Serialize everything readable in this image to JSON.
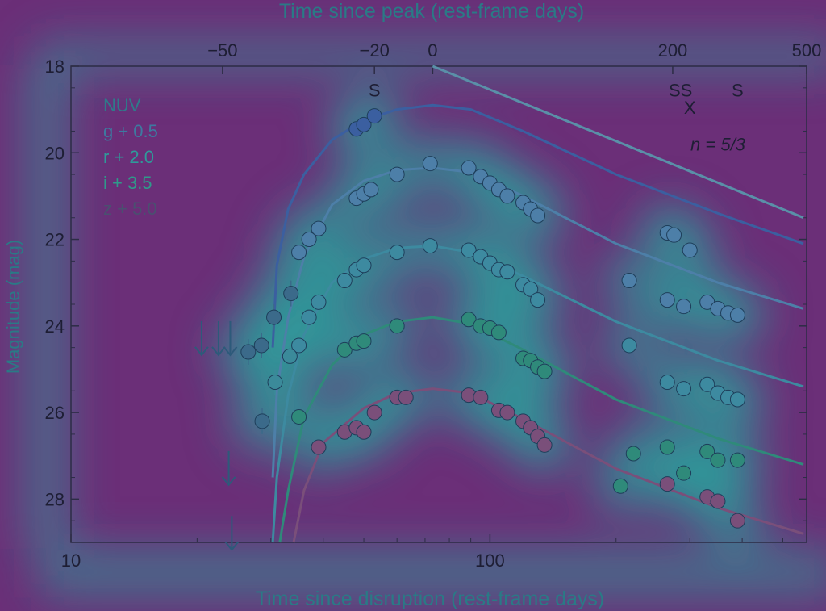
{
  "chart_data": {
    "type": "scatter",
    "title": "",
    "xlabel": "Time since disruption (rest-frame days)",
    "x2label": "Time since peak (rest-frame days)",
    "ylabel": "Magnitude (mag)",
    "xscale": "log",
    "xlim": [
      10,
      570
    ],
    "ylim": [
      29.0,
      18.0
    ],
    "y_inverted": true,
    "x_ticks": [
      10,
      100
    ],
    "x_tick_labels": [
      "10",
      "100"
    ],
    "x2_ticks": [
      {
        "label": "−50",
        "x": 23
      },
      {
        "label": "−20",
        "x": 53
      },
      {
        "label": "0",
        "x": 73
      },
      {
        "label": "200",
        "x": 273
      },
      {
        "label": "500",
        "x": 573
      }
    ],
    "y_ticks": [
      18,
      20,
      22,
      24,
      26,
      28
    ],
    "y_tick_labels": [
      "18",
      "20",
      "22",
      "24",
      "26",
      "28"
    ],
    "legend": {
      "placement": "top-left",
      "entries": [
        "NUV",
        "g + 0.5",
        "r + 2.0",
        "i + 3.5",
        "z + 5.0"
      ]
    },
    "annotations": [
      {
        "text": "S",
        "x": 53,
        "y": 18.55
      },
      {
        "text": "SS",
        "x": 285,
        "y": 18.55
      },
      {
        "text": "X",
        "x": 300,
        "y": 18.95
      },
      {
        "text": "S",
        "x": 390,
        "y": 18.55
      },
      {
        "text": "n = 5/3",
        "x": 350,
        "y": 19.8
      }
    ],
    "series": [
      {
        "name": "NUV",
        "color": "#5a90a8",
        "points": [],
        "model": [
          [
            73,
            18.0
          ],
          [
            560,
            21.5
          ]
        ]
      },
      {
        "name": "g + 0.5",
        "color": "#3b5fa0",
        "points": [
          {
            "x": 48,
            "y": 19.45
          },
          {
            "x": 50,
            "y": 19.35
          },
          {
            "x": 53,
            "y": 19.15
          }
        ],
        "model": [
          [
            30.3,
            24.5
          ],
          [
            31,
            22.6
          ],
          [
            33,
            21.3
          ],
          [
            36,
            20.5
          ],
          [
            42,
            19.7
          ],
          [
            50,
            19.25
          ],
          [
            60,
            19.0
          ],
          [
            73,
            18.9
          ],
          [
            90,
            19.0
          ],
          [
            120,
            19.5
          ],
          [
            200,
            20.5
          ],
          [
            350,
            21.4
          ],
          [
            560,
            22.1
          ]
        ]
      },
      {
        "name": "r + 2.0",
        "color": "#4d7fa8",
        "points": [
          {
            "x": 35,
            "y": 22.3
          },
          {
            "x": 37,
            "y": 22.0
          },
          {
            "x": 39,
            "y": 21.75
          },
          {
            "x": 48,
            "y": 21.05
          },
          {
            "x": 50,
            "y": 20.95
          },
          {
            "x": 52,
            "y": 20.85
          },
          {
            "x": 60,
            "y": 20.5
          },
          {
            "x": 72,
            "y": 20.25
          },
          {
            "x": 89,
            "y": 20.35
          },
          {
            "x": 95,
            "y": 20.55
          },
          {
            "x": 100,
            "y": 20.7
          },
          {
            "x": 105,
            "y": 20.85
          },
          {
            "x": 110,
            "y": 21.0
          },
          {
            "x": 120,
            "y": 21.15
          },
          {
            "x": 125,
            "y": 21.3
          },
          {
            "x": 130,
            "y": 21.45
          },
          {
            "x": 265,
            "y": 21.85
          },
          {
            "x": 275,
            "y": 21.9
          },
          {
            "x": 300,
            "y": 22.25
          },
          {
            "x": 215,
            "y": 22.95
          },
          {
            "x": 265,
            "y": 23.4
          },
          {
            "x": 290,
            "y": 23.55
          },
          {
            "x": 330,
            "y": 23.45
          },
          {
            "x": 350,
            "y": 23.6
          },
          {
            "x": 370,
            "y": 23.7
          },
          {
            "x": 390,
            "y": 23.75
          }
        ],
        "model": [
          [
            30.3,
            27.5
          ],
          [
            31,
            25.5
          ],
          [
            33,
            23.8
          ],
          [
            36,
            22.4
          ],
          [
            42,
            21.2
          ],
          [
            50,
            20.65
          ],
          [
            60,
            20.4
          ],
          [
            73,
            20.35
          ],
          [
            90,
            20.45
          ],
          [
            120,
            21.0
          ],
          [
            200,
            22.1
          ],
          [
            350,
            23.0
          ],
          [
            560,
            23.6
          ]
        ]
      },
      {
        "name": "i + 3.5",
        "color": "#3d8aa0",
        "points": [
          {
            "x": 35,
            "y": 24.45
          },
          {
            "x": 37,
            "y": 23.8
          },
          {
            "x": 39,
            "y": 23.45
          },
          {
            "x": 45,
            "y": 22.95
          },
          {
            "x": 48,
            "y": 22.7
          },
          {
            "x": 50,
            "y": 22.6
          },
          {
            "x": 60,
            "y": 22.3
          },
          {
            "x": 72,
            "y": 22.15
          },
          {
            "x": 89,
            "y": 22.25
          },
          {
            "x": 95,
            "y": 22.4
          },
          {
            "x": 100,
            "y": 22.55
          },
          {
            "x": 105,
            "y": 22.7
          },
          {
            "x": 110,
            "y": 22.75
          },
          {
            "x": 120,
            "y": 23.05
          },
          {
            "x": 125,
            "y": 23.15
          },
          {
            "x": 130,
            "y": 23.4
          },
          {
            "x": 215,
            "y": 24.45
          },
          {
            "x": 265,
            "y": 25.3
          },
          {
            "x": 290,
            "y": 25.45
          },
          {
            "x": 330,
            "y": 25.35
          },
          {
            "x": 350,
            "y": 25.55
          },
          {
            "x": 370,
            "y": 25.65
          },
          {
            "x": 390,
            "y": 25.7
          }
        ],
        "model": [
          [
            30.3,
            29.0
          ],
          [
            31,
            27.5
          ],
          [
            33,
            25.6
          ],
          [
            36,
            24.2
          ],
          [
            42,
            23.0
          ],
          [
            50,
            22.45
          ],
          [
            60,
            22.2
          ],
          [
            73,
            22.15
          ],
          [
            90,
            22.3
          ],
          [
            120,
            22.85
          ],
          [
            200,
            23.9
          ],
          [
            350,
            24.8
          ],
          [
            560,
            25.4
          ]
        ]
      },
      {
        "name": "z + 5.0",
        "color": "#2f8a7a",
        "points": [
          {
            "x": 35,
            "y": 26.1
          },
          {
            "x": 45,
            "y": 24.55
          },
          {
            "x": 48,
            "y": 24.4
          },
          {
            "x": 50,
            "y": 24.35
          },
          {
            "x": 60,
            "y": 24.0
          },
          {
            "x": 89,
            "y": 23.85
          },
          {
            "x": 95,
            "y": 24.0
          },
          {
            "x": 100,
            "y": 24.05
          },
          {
            "x": 105,
            "y": 24.15
          },
          {
            "x": 120,
            "y": 24.75
          },
          {
            "x": 125,
            "y": 24.8
          },
          {
            "x": 130,
            "y": 24.95
          },
          {
            "x": 135,
            "y": 25.05
          },
          {
            "x": 205,
            "y": 27.7
          },
          {
            "x": 220,
            "y": 26.95
          },
          {
            "x": 265,
            "y": 26.8
          },
          {
            "x": 290,
            "y": 27.4
          },
          {
            "x": 330,
            "y": 26.9
          },
          {
            "x": 350,
            "y": 27.1
          },
          {
            "x": 390,
            "y": 27.1
          }
        ],
        "model": [
          [
            31.5,
            29.0
          ],
          [
            33,
            27.8
          ],
          [
            36,
            26.1
          ],
          [
            42,
            24.9
          ],
          [
            50,
            24.2
          ],
          [
            60,
            23.9
          ],
          [
            73,
            23.8
          ],
          [
            90,
            23.95
          ],
          [
            120,
            24.55
          ],
          [
            200,
            25.7
          ],
          [
            350,
            26.6
          ],
          [
            560,
            27.2
          ]
        ]
      },
      {
        "name": "NUV",
        "color": "#7a4f7a",
        "points": [
          {
            "x": 39,
            "y": 26.8
          },
          {
            "x": 45,
            "y": 26.45
          },
          {
            "x": 48,
            "y": 26.35
          },
          {
            "x": 50,
            "y": 26.45
          },
          {
            "x": 53,
            "y": 26.0
          },
          {
            "x": 60,
            "y": 25.65
          },
          {
            "x": 63,
            "y": 25.65
          },
          {
            "x": 89,
            "y": 25.6
          },
          {
            "x": 95,
            "y": 25.65
          },
          {
            "x": 105,
            "y": 25.95
          },
          {
            "x": 110,
            "y": 26.0
          },
          {
            "x": 120,
            "y": 26.2
          },
          {
            "x": 125,
            "y": 26.35
          },
          {
            "x": 130,
            "y": 26.55
          },
          {
            "x": 135,
            "y": 26.75
          },
          {
            "x": 265,
            "y": 27.65
          },
          {
            "x": 330,
            "y": 27.95
          },
          {
            "x": 350,
            "y": 28.05
          },
          {
            "x": 390,
            "y": 28.5
          }
        ],
        "model": [
          [
            34,
            29.0
          ],
          [
            36,
            27.8
          ],
          [
            40,
            26.7
          ],
          [
            50,
            25.9
          ],
          [
            60,
            25.55
          ],
          [
            73,
            25.45
          ],
          [
            90,
            25.55
          ],
          [
            120,
            26.15
          ],
          [
            200,
            27.3
          ],
          [
            350,
            28.2
          ],
          [
            560,
            28.8
          ]
        ]
      }
    ],
    "early_points": [
      {
        "x": 26.5,
        "y": 24.6,
        "color": "#3b6a8a"
      },
      {
        "x": 28.5,
        "y": 24.45,
        "color": "#3b6a8a"
      },
      {
        "x": 28.6,
        "y": 26.2,
        "color": "#3b6a8a"
      },
      {
        "x": 30.5,
        "y": 23.8,
        "color": "#3b6a8a"
      },
      {
        "x": 30.7,
        "y": 25.3,
        "color": "#3b8a9a"
      },
      {
        "x": 33.5,
        "y": 23.25,
        "color": "#3b6a8a"
      },
      {
        "x": 33.3,
        "y": 24.7,
        "color": "#3b8a9a"
      }
    ],
    "upper_limits": [
      {
        "x": 20.5,
        "y": 24.3
      },
      {
        "x": 22.5,
        "y": 24.3
      },
      {
        "x": 24.0,
        "y": 24.3
      },
      {
        "x": 23.8,
        "y": 27.3
      },
      {
        "x": 24.2,
        "y": 28.8
      }
    ]
  }
}
